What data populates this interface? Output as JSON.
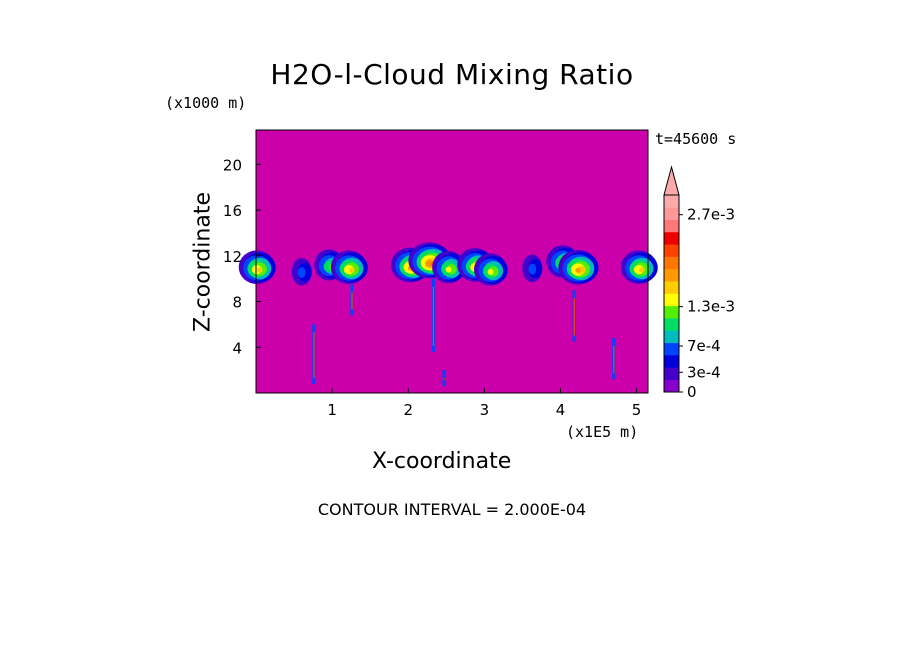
{
  "chart_data": {
    "type": "heatmap",
    "title": "H2O-l-Cloud Mixing Ratio",
    "xlabel": "X-coordinate",
    "ylabel": "Z-coordinate",
    "x_unit": "(x1E5 m)",
    "y_unit": "(x1000 m)",
    "time_label": "t=45600 s",
    "footer": "CONTOUR INTERVAL = 2.000E-04",
    "xlim": [
      0,
      5.15
    ],
    "ylim": [
      0,
      23
    ],
    "x_ticks": [
      1,
      2,
      3,
      4,
      5
    ],
    "y_ticks": [
      4,
      8,
      12,
      16,
      20
    ],
    "background_color": "#cc00aa",
    "colorbar": {
      "colors": [
        "#8800cc",
        "#4400cc",
        "#0000dd",
        "#0044ff",
        "#00bbbb",
        "#00dd66",
        "#55ee00",
        "#ffff00",
        "#ffcc00",
        "#ff9900",
        "#ff7700",
        "#ff4400",
        "#ee0000",
        "#ff7777",
        "#ff9999",
        "#ffaaaa"
      ],
      "over_color": "#ffaaaa",
      "labels": [
        {
          "text": "0",
          "value": 0
        },
        {
          "text": "3e-4",
          "value": 0.0003
        },
        {
          "text": "7e-4",
          "value": 0.0007
        },
        {
          "text": "1.3e-3",
          "value": 0.0013
        },
        {
          "text": "2.7e-3",
          "value": 0.0027
        }
      ],
      "vmin": 0,
      "vmax": 0.003
    },
    "cloud_features": [
      {
        "x": 0.03,
        "z": 11.0,
        "level": 7
      },
      {
        "x": 0.62,
        "z": 10.6,
        "level": 2
      },
      {
        "x": 0.98,
        "z": 11.2,
        "level": 5
      },
      {
        "x": 1.24,
        "z": 11.0,
        "level": 7
      },
      {
        "x": 2.05,
        "z": 11.2,
        "level": 8
      },
      {
        "x": 2.3,
        "z": 11.6,
        "level": 9
      },
      {
        "x": 2.55,
        "z": 11.0,
        "level": 6
      },
      {
        "x": 2.9,
        "z": 11.2,
        "level": 7
      },
      {
        "x": 3.1,
        "z": 10.8,
        "level": 6
      },
      {
        "x": 3.65,
        "z": 10.9,
        "level": 2
      },
      {
        "x": 4.05,
        "z": 11.5,
        "level": 6
      },
      {
        "x": 4.25,
        "z": 11.0,
        "level": 8
      },
      {
        "x": 5.05,
        "z": 11.0,
        "level": 7
      }
    ],
    "shafts": [
      {
        "x": 0.76,
        "z_top": 6.0,
        "z_bottom": 0.8
      },
      {
        "x": 2.33,
        "z_top": 10.0,
        "z_bottom": 3.6
      },
      {
        "x": 2.47,
        "z_top": 2.0,
        "z_bottom": 0.6
      },
      {
        "x": 4.18,
        "z_top": 9.0,
        "z_bottom": 4.5
      },
      {
        "x": 4.7,
        "z_top": 4.8,
        "z_bottom": 1.2
      },
      {
        "x": 1.26,
        "z_top": 9.5,
        "z_bottom": 6.8
      }
    ]
  }
}
